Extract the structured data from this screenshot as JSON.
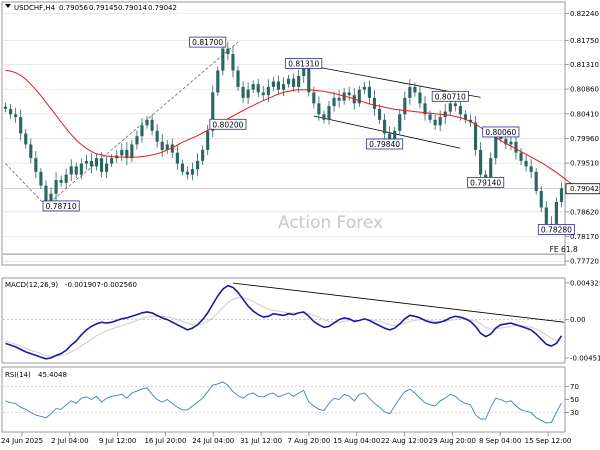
{
  "chart_data": [
    {
      "type": "candlestick",
      "name": "price",
      "header": {
        "symbol": "USDCHF,H4",
        "open": "0.79056",
        "high": "0.79145",
        "low": "0.79014",
        "close": "0.79042"
      },
      "watermark": "Action Forex",
      "ylim": [
        0.7765,
        0.8245
      ],
      "y_ticks": [
        "0.82240",
        "0.81750",
        "0.81310",
        "0.80860",
        "0.80410",
        "0.79960",
        "0.79510",
        "0.78620",
        "0.78170",
        "0.77720"
      ],
      "current_price": "0.79042",
      "annotations": [
        {
          "text": "0.81700",
          "x": 40,
          "y": 0.817
        },
        {
          "text": "0.80200",
          "x": 44,
          "y": 0.802
        },
        {
          "text": "0.81310",
          "x": 59,
          "y": 0.8131
        },
        {
          "text": "0.78710",
          "x": 11,
          "y": 0.7871
        },
        {
          "text": "0.80710",
          "x": 88,
          "y": 0.8071
        },
        {
          "text": "0.79840",
          "x": 75,
          "y": 0.7984
        },
        {
          "text": "0.80060",
          "x": 98,
          "y": 0.8006
        },
        {
          "text": "0.79140",
          "x": 95,
          "y": 0.7914
        },
        {
          "text": "0.78280",
          "x": 109,
          "y": 0.7828
        },
        {
          "text": "FE 61.8",
          "x": 112,
          "y": 0.7785
        }
      ],
      "fe_level": 0.7785,
      "channel": {
        "upper": [
          [
            59,
            0.8131
          ],
          [
            94,
            0.8071
          ]
        ],
        "lower": [
          [
            61,
            0.8037
          ],
          [
            90,
            0.7978
          ]
        ]
      },
      "rising_line": [
        [
          8,
          0.7873
        ],
        [
          46,
          0.8172
        ]
      ],
      "moving_average": [
        0.812,
        0.8119,
        0.8116,
        0.8111,
        0.8104,
        0.8095,
        0.8085,
        0.8074,
        0.8062,
        0.805,
        0.8038,
        0.8026,
        0.8014,
        0.8003,
        0.7993,
        0.7985,
        0.7978,
        0.7972,
        0.7968,
        0.7966,
        0.7964,
        0.7963,
        0.7962,
        0.7962,
        0.7962,
        0.7962,
        0.7962,
        0.7963,
        0.7964,
        0.7966,
        0.7968,
        0.7971,
        0.7975,
        0.7979,
        0.7984,
        0.7989,
        0.7993,
        0.7997,
        0.8001,
        0.8006,
        0.8011,
        0.8016,
        0.8022,
        0.8027,
        0.8032,
        0.8037,
        0.8042,
        0.8047,
        0.8052,
        0.8056,
        0.8061,
        0.8065,
        0.8069,
        0.8073,
        0.8077,
        0.808,
        0.8082,
        0.8084,
        0.8085,
        0.8085,
        0.8085,
        0.8084,
        0.8083,
        0.8082,
        0.808,
        0.8078,
        0.8076,
        0.8073,
        0.8071,
        0.8068,
        0.8065,
        0.8062,
        0.8059,
        0.8057,
        0.8055,
        0.8053,
        0.8051,
        0.8049,
        0.8048,
        0.8047,
        0.8046,
        0.8045,
        0.8044,
        0.8043,
        0.8042,
        0.8041,
        0.804,
        0.8039,
        0.8038,
        0.8036,
        0.8034,
        0.8031,
        0.8027,
        0.8022,
        0.8016,
        0.801,
        0.8004,
        0.7998,
        0.7992,
        0.7987,
        0.7982,
        0.7977,
        0.7972,
        0.7967,
        0.7962,
        0.7957,
        0.7952,
        0.7946,
        0.794,
        0.7934,
        0.7927,
        0.792,
        0.7913
      ],
      "closes": [
        0.805,
        0.804,
        0.8035,
        0.8005,
        0.7985,
        0.796,
        0.7935,
        0.791,
        0.788,
        0.7895,
        0.792,
        0.7915,
        0.793,
        0.7945,
        0.793,
        0.795,
        0.7955,
        0.7945,
        0.796,
        0.7935,
        0.795,
        0.796,
        0.7965,
        0.7975,
        0.796,
        0.7985,
        0.8,
        0.802,
        0.803,
        0.801,
        0.799,
        0.7975,
        0.7985,
        0.797,
        0.795,
        0.7935,
        0.793,
        0.794,
        0.7955,
        0.7975,
        0.801,
        0.808,
        0.812,
        0.816,
        0.815,
        0.812,
        0.809,
        0.807,
        0.8085,
        0.8095,
        0.808,
        0.8075,
        0.809,
        0.81,
        0.8085,
        0.8095,
        0.8105,
        0.809,
        0.811,
        0.8125,
        0.808,
        0.806,
        0.804,
        0.803,
        0.8055,
        0.807,
        0.8065,
        0.808,
        0.8075,
        0.806,
        0.8085,
        0.809,
        0.807,
        0.805,
        0.803,
        0.8005,
        0.799,
        0.801,
        0.804,
        0.807,
        0.809,
        0.808,
        0.806,
        0.804,
        0.803,
        0.802,
        0.8035,
        0.8045,
        0.806,
        0.8055,
        0.804,
        0.803,
        0.8025,
        0.7975,
        0.793,
        0.792,
        0.796,
        0.8,
        0.7995,
        0.7985,
        0.799,
        0.797,
        0.7955,
        0.7945,
        0.7935,
        0.79,
        0.787,
        0.784,
        0.784,
        0.788,
        0.7905
      ]
    },
    {
      "type": "line",
      "name": "MACD",
      "header": {
        "label": "MACD(12,26,9)",
        "macd": "-0.001907",
        "signal": "-0.002560"
      },
      "ylim": [
        -0.0051,
        0.0049
      ],
      "y_ticks": [
        "0.004325",
        "0.00",
        "-0.004511"
      ],
      "macd": [
        -0.0028,
        -0.003,
        -0.0032,
        -0.0035,
        -0.0038,
        -0.004,
        -0.0042,
        -0.0044,
        -0.0046,
        -0.0045,
        -0.0042,
        -0.004,
        -0.0036,
        -0.003,
        -0.0025,
        -0.0018,
        -0.0012,
        -0.0008,
        -0.0005,
        -0.0003,
        -0.0004,
        -0.0003,
        -0.0001,
        0.0001,
        0.0002,
        0.0004,
        0.0006,
        0.0008,
        0.0009,
        0.0008,
        0.0005,
        0.0002,
        0.0,
        -0.0003,
        -0.0006,
        -0.0009,
        -0.0012,
        -0.001,
        -0.0006,
        0.0,
        0.0008,
        0.0018,
        0.0028,
        0.0036,
        0.004,
        0.0038,
        0.0032,
        0.0024,
        0.0016,
        0.001,
        0.0006,
        0.0003,
        0.0004,
        0.0007,
        0.0006,
        0.0005,
        0.0007,
        0.0006,
        0.0008,
        0.0009,
        0.0004,
        -0.0002,
        -0.0006,
        -0.0009,
        -0.0008,
        -0.0004,
        0.0,
        0.0002,
        0.0001,
        -0.0002,
        -0.0001,
        0.0001,
        -0.0001,
        -0.0004,
        -0.0007,
        -0.001,
        -0.0012,
        -0.001,
        -0.0005,
        0.0001,
        0.0005,
        0.0004,
        0.0002,
        -0.0001,
        -0.0003,
        -0.0004,
        -0.0003,
        -0.0001,
        0.0002,
        0.0004,
        0.0003,
        0.0001,
        -0.0002,
        -0.0008,
        -0.0016,
        -0.002,
        -0.0017,
        -0.001,
        -0.0006,
        -0.0005,
        -0.0004,
        -0.0006,
        -0.0008,
        -0.001,
        -0.0012,
        -0.0017,
        -0.0023,
        -0.0029,
        -0.0031,
        -0.0028,
        -0.0019
      ],
      "signal": [
        -0.0025,
        -0.0027,
        -0.0029,
        -0.0031,
        -0.0034,
        -0.0036,
        -0.0038,
        -0.004,
        -0.0042,
        -0.0043,
        -0.0043,
        -0.0042,
        -0.0041,
        -0.0038,
        -0.0035,
        -0.0031,
        -0.0027,
        -0.0023,
        -0.0019,
        -0.0016,
        -0.0013,
        -0.0011,
        -0.0009,
        -0.0007,
        -0.0005,
        -0.0003,
        -0.0001,
        0.0001,
        0.0003,
        0.0004,
        0.0004,
        0.0004,
        0.0003,
        0.0002,
        0.0,
        -0.0002,
        -0.0004,
        -0.0006,
        -0.0006,
        -0.0005,
        -0.0002,
        0.0002,
        0.0008,
        0.0014,
        0.002,
        0.0024,
        0.0026,
        0.0026,
        0.0024,
        0.0021,
        0.0018,
        0.0015,
        0.0012,
        0.0011,
        0.001,
        0.0009,
        0.0008,
        0.0008,
        0.0008,
        0.0008,
        0.0007,
        0.0005,
        0.0003,
        0.0,
        -0.0002,
        -0.0003,
        -0.0003,
        -0.0002,
        -0.0001,
        -0.0001,
        -0.0001,
        0.0,
        0.0,
        -0.0001,
        -0.0002,
        -0.0004,
        -0.0006,
        -0.0007,
        -0.0006,
        -0.0004,
        -0.0002,
        -0.0001,
        0.0,
        0.0,
        -0.0001,
        -0.0002,
        -0.0002,
        -0.0002,
        -0.0001,
        0.0,
        0.0001,
        0.0001,
        0.0,
        -0.0002,
        -0.0005,
        -0.0009,
        -0.0011,
        -0.0011,
        -0.001,
        -0.0009,
        -0.0008,
        -0.0007,
        -0.0007,
        -0.0008,
        -0.0009,
        -0.0011,
        -0.0014,
        -0.0018,
        -0.0022,
        -0.0024,
        -0.0025
      ],
      "trendline": [
        [
          45,
          0.0043
        ],
        [
          120,
          -0.0003
        ]
      ]
    },
    {
      "type": "line",
      "name": "RSI",
      "header": {
        "label": "RSI(14)",
        "value": "45.4048"
      },
      "ylim": [
        0,
        100
      ],
      "y_ticks": [
        "70",
        "50",
        "30"
      ],
      "levels": [
        70,
        30
      ],
      "values": [
        48,
        45,
        44,
        38,
        35,
        30,
        26,
        24,
        22,
        28,
        36,
        35,
        42,
        48,
        44,
        52,
        54,
        50,
        55,
        46,
        52,
        55,
        56,
        58,
        52,
        60,
        63,
        66,
        68,
        58,
        50,
        46,
        50,
        44,
        38,
        34,
        34,
        40,
        46,
        52,
        62,
        72,
        74,
        77,
        72,
        62,
        56,
        52,
        58,
        60,
        55,
        54,
        58,
        60,
        54,
        57,
        60,
        55,
        60,
        64,
        46,
        40,
        35,
        33,
        44,
        52,
        50,
        58,
        55,
        48,
        58,
        60,
        52,
        44,
        38,
        31,
        28,
        40,
        52,
        62,
        66,
        60,
        52,
        45,
        42,
        40,
        48,
        52,
        58,
        55,
        48,
        44,
        42,
        26,
        20,
        20,
        38,
        52,
        50,
        46,
        48,
        40,
        34,
        32,
        30,
        22,
        18,
        14,
        15,
        30,
        45
      ]
    }
  ],
  "x_axis": {
    "labels": [
      "24 Jun 2025",
      "2 Jul 04:00",
      "9 Jul 12:00",
      "16 Jul 20:00",
      "24 Jul 04:00",
      "31 Jul 12:00",
      "7 Aug 20:00",
      "15 Aug 04:00",
      "22 Aug 12:00",
      "29 Aug 20:00",
      "8 Sep 04:00",
      "15 Sep 12:00"
    ]
  },
  "colors": {
    "background": "#ffffff",
    "candle": "#2a6560",
    "ma": "#e11d1d",
    "macd": "#1a1aa0",
    "signal": "#d0d0d0",
    "rsi": "#3a7fd0",
    "trendline": "#000000",
    "grid": "#d9d9d9",
    "watermark": "#c7c7c7",
    "label_box": "#2a2aa0",
    "dashed": "#555555"
  }
}
